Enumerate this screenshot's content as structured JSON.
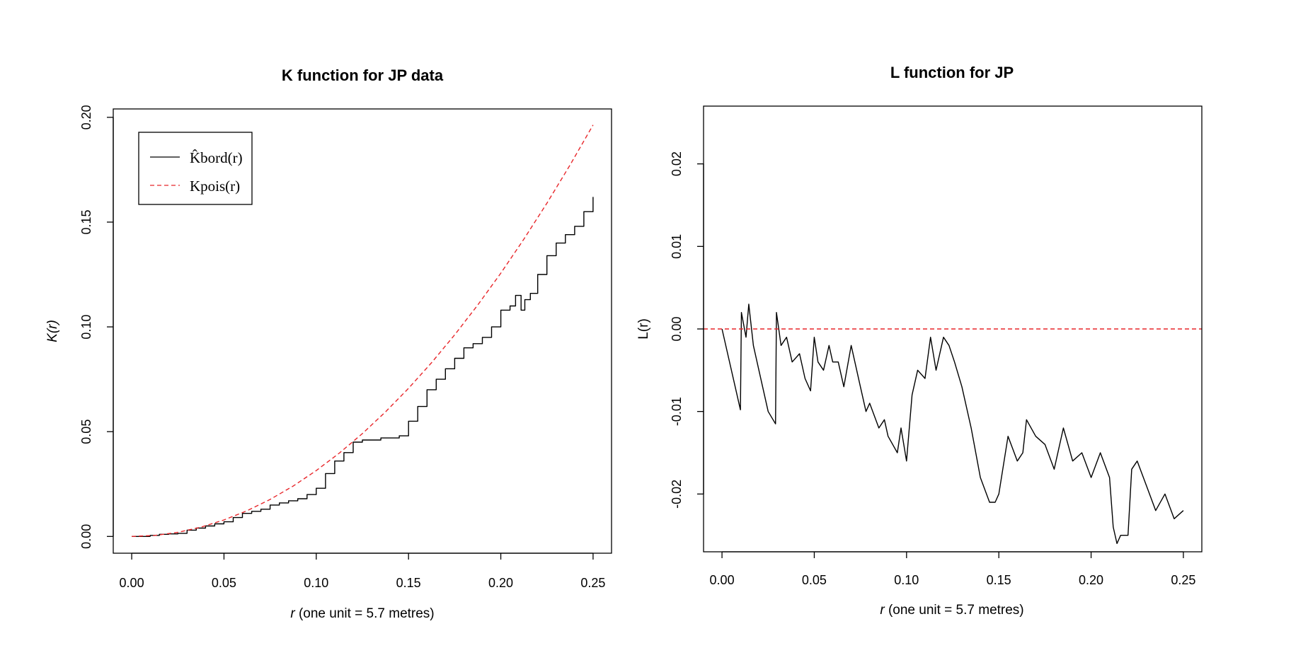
{
  "chart_data": [
    {
      "type": "line",
      "title": "K function for JP data",
      "xlabel_var": "r",
      "xlabel_rest": " (one unit = 5.7 metres)",
      "ylabel": "K(r)",
      "xlim": [
        -0.01,
        0.26
      ],
      "ylim": [
        -0.008,
        0.204
      ],
      "xticks": [
        0.0,
        0.05,
        0.1,
        0.15,
        0.2,
        0.25
      ],
      "xtick_labels": [
        "0.00",
        "0.05",
        "0.10",
        "0.15",
        "0.20",
        "0.25"
      ],
      "yticks": [
        0.0,
        0.05,
        0.1,
        0.15,
        0.2
      ],
      "ytick_labels": [
        "0.00",
        "0.05",
        "0.10",
        "0.15",
        "0.20"
      ],
      "legend_position": "top-left",
      "series": [
        {
          "name": "K_bord(r)",
          "legend_label": "K̂bord(r)",
          "style": "solid",
          "color": "#000000",
          "x": [
            0.0,
            0.01,
            0.015,
            0.02,
            0.025,
            0.03,
            0.035,
            0.04,
            0.045,
            0.05,
            0.055,
            0.06,
            0.065,
            0.07,
            0.075,
            0.08,
            0.085,
            0.09,
            0.095,
            0.1,
            0.105,
            0.11,
            0.115,
            0.12,
            0.125,
            0.13,
            0.135,
            0.14,
            0.145,
            0.15,
            0.155,
            0.16,
            0.165,
            0.17,
            0.175,
            0.18,
            0.185,
            0.19,
            0.195,
            0.2,
            0.205,
            0.208,
            0.211,
            0.213,
            0.216,
            0.22,
            0.225,
            0.23,
            0.235,
            0.24,
            0.245,
            0.25
          ],
          "y": [
            0.0,
            0.0005,
            0.001,
            0.0012,
            0.0015,
            0.003,
            0.004,
            0.005,
            0.006,
            0.007,
            0.009,
            0.011,
            0.012,
            0.013,
            0.015,
            0.016,
            0.017,
            0.018,
            0.02,
            0.023,
            0.03,
            0.036,
            0.04,
            0.045,
            0.046,
            0.046,
            0.047,
            0.047,
            0.048,
            0.055,
            0.062,
            0.07,
            0.075,
            0.08,
            0.085,
            0.09,
            0.092,
            0.095,
            0.1,
            0.108,
            0.11,
            0.115,
            0.108,
            0.113,
            0.116,
            0.125,
            0.134,
            0.14,
            0.144,
            0.148,
            0.155,
            0.162
          ]
        },
        {
          "name": "K_pois(r)",
          "legend_label": "Kpois(r)",
          "style": "dashed",
          "color": "#e8262a",
          "x": [
            0.0,
            0.0125,
            0.025,
            0.0375,
            0.05,
            0.0625,
            0.075,
            0.0875,
            0.1,
            0.1125,
            0.125,
            0.1375,
            0.15,
            0.1625,
            0.175,
            0.1875,
            0.2,
            0.2125,
            0.225,
            0.2375,
            0.25
          ],
          "y": [
            0.0,
            0.00049,
            0.00196,
            0.00442,
            0.00785,
            0.01227,
            0.01767,
            0.02405,
            0.03142,
            0.03976,
            0.04909,
            0.0594,
            0.07069,
            0.08296,
            0.09621,
            0.11045,
            0.12566,
            0.14186,
            0.15904,
            0.1772,
            0.19635
          ]
        }
      ]
    },
    {
      "type": "line",
      "title": "L function for JP",
      "xlabel_var": "r",
      "xlabel_rest": " (one unit = 5.7 metres)",
      "ylabel": "L(r)",
      "xlim": [
        -0.01,
        0.26
      ],
      "ylim": [
        -0.027,
        0.027
      ],
      "xticks": [
        0.0,
        0.05,
        0.1,
        0.15,
        0.2,
        0.25
      ],
      "xtick_labels": [
        "0.00",
        "0.05",
        "0.10",
        "0.15",
        "0.20",
        "0.25"
      ],
      "yticks": [
        -0.02,
        -0.01,
        0.0,
        0.01,
        0.02
      ],
      "ytick_labels": [
        "-0.02",
        "-0.01",
        "0.00",
        "0.01",
        "0.02"
      ],
      "series": [
        {
          "name": "L(r)",
          "style": "solid",
          "color": "#000000",
          "x": [
            0.0,
            0.01,
            0.0105,
            0.013,
            0.0145,
            0.017,
            0.02,
            0.025,
            0.029,
            0.0295,
            0.032,
            0.035,
            0.038,
            0.042,
            0.045,
            0.048,
            0.05,
            0.052,
            0.055,
            0.058,
            0.06,
            0.063,
            0.066,
            0.07,
            0.072,
            0.075,
            0.078,
            0.08,
            0.085,
            0.088,
            0.09,
            0.095,
            0.097,
            0.1,
            0.103,
            0.106,
            0.11,
            0.113,
            0.116,
            0.12,
            0.123,
            0.126,
            0.13,
            0.135,
            0.14,
            0.145,
            0.148,
            0.15,
            0.155,
            0.16,
            0.163,
            0.165,
            0.17,
            0.175,
            0.18,
            0.185,
            0.19,
            0.195,
            0.2,
            0.205,
            0.21,
            0.212,
            0.214,
            0.216,
            0.22,
            0.222,
            0.225,
            0.23,
            0.235,
            0.24,
            0.245,
            0.25
          ],
          "y": [
            0.0,
            -0.0098,
            0.002,
            -0.001,
            0.003,
            -0.002,
            -0.005,
            -0.01,
            -0.0115,
            0.002,
            -0.002,
            -0.001,
            -0.004,
            -0.003,
            -0.006,
            -0.0075,
            -0.001,
            -0.004,
            -0.005,
            -0.002,
            -0.004,
            -0.004,
            -0.007,
            -0.002,
            -0.004,
            -0.007,
            -0.01,
            -0.009,
            -0.012,
            -0.011,
            -0.013,
            -0.015,
            -0.012,
            -0.016,
            -0.008,
            -0.005,
            -0.006,
            -0.001,
            -0.005,
            -0.001,
            -0.002,
            -0.004,
            -0.007,
            -0.012,
            -0.018,
            -0.021,
            -0.021,
            -0.02,
            -0.013,
            -0.016,
            -0.015,
            -0.011,
            -0.013,
            -0.014,
            -0.017,
            -0.012,
            -0.016,
            -0.015,
            -0.018,
            -0.015,
            -0.018,
            -0.024,
            -0.026,
            -0.025,
            -0.025,
            -0.017,
            -0.016,
            -0.019,
            -0.022,
            -0.02,
            -0.023,
            -0.022
          ]
        },
        {
          "name": "zero reference",
          "style": "dashed",
          "color": "#e8262a",
          "x": [
            -0.01,
            0.26
          ],
          "y": [
            0.0,
            0.0
          ]
        }
      ]
    }
  ]
}
